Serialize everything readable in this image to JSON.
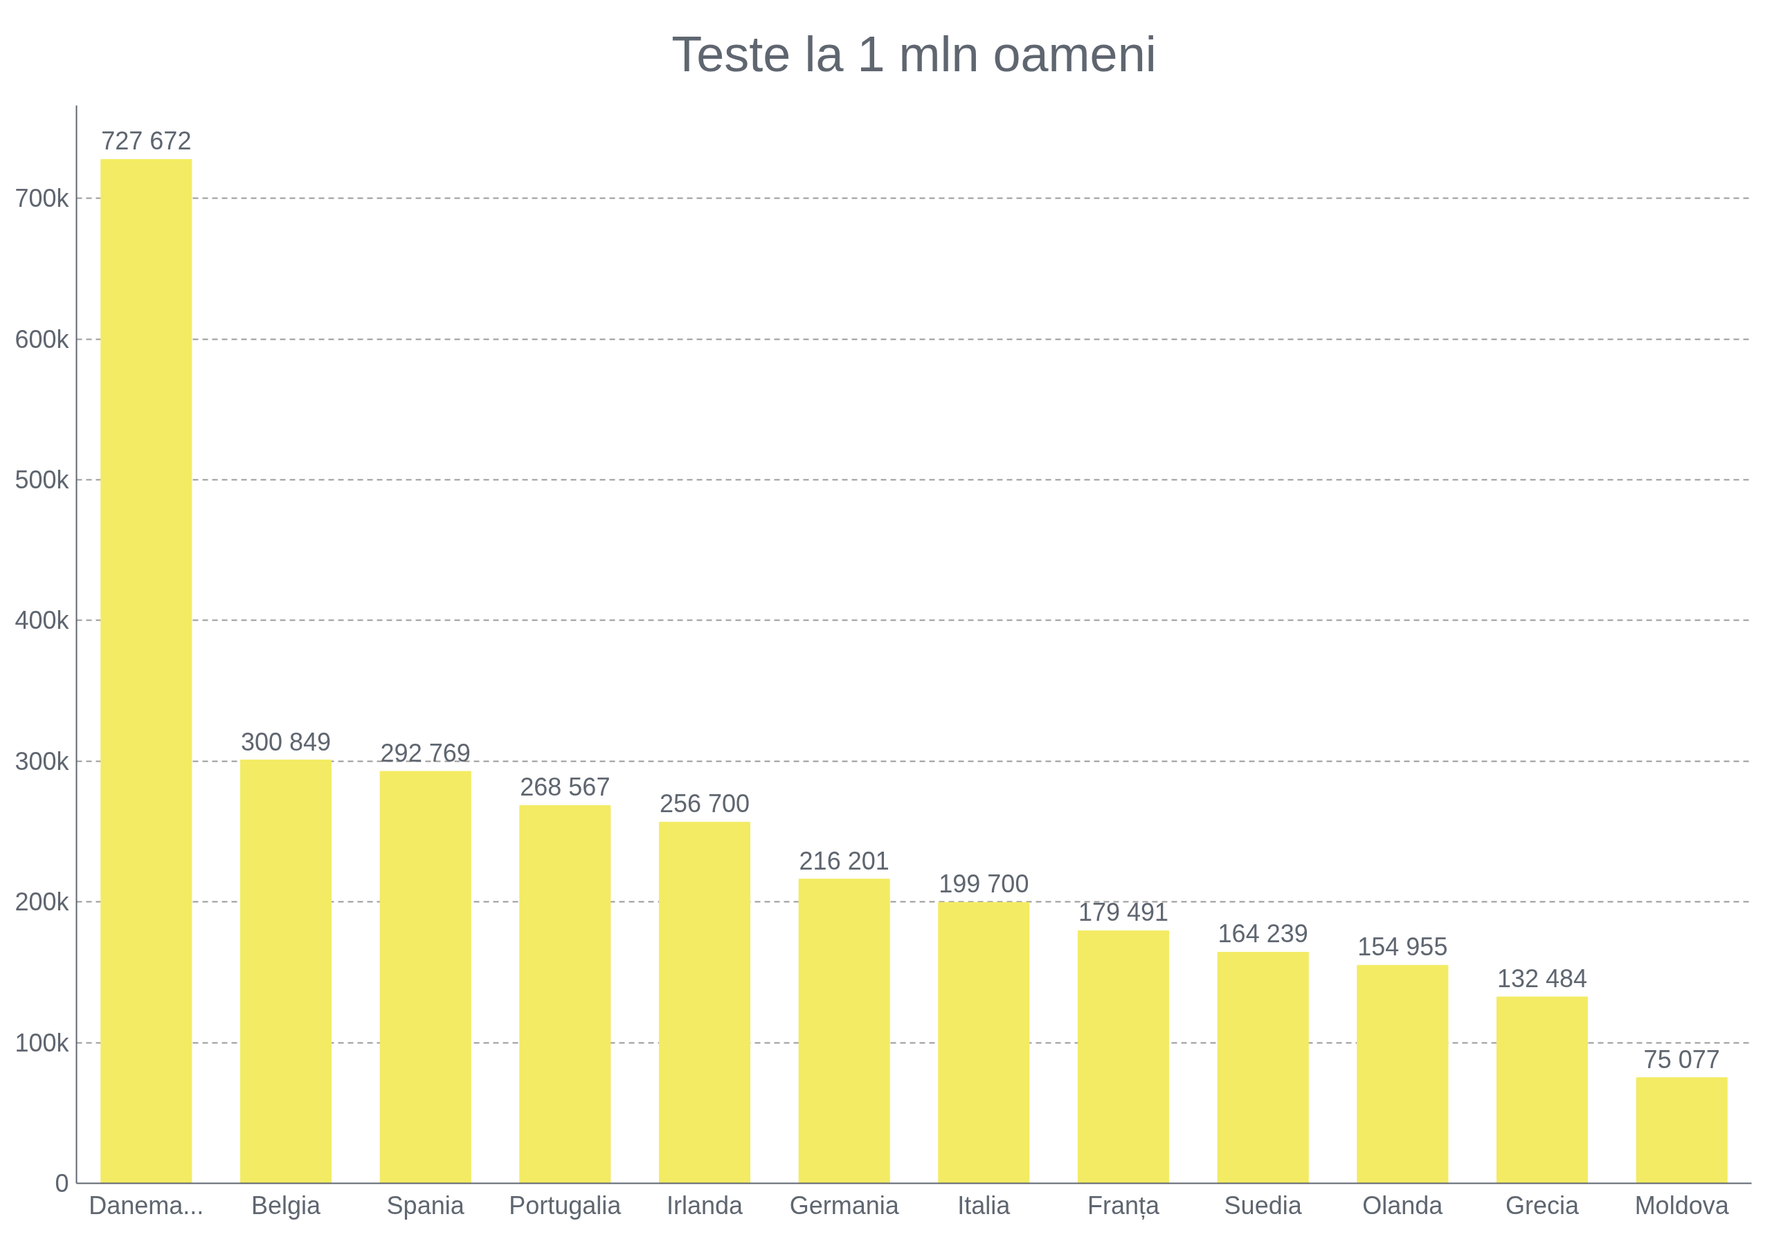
{
  "chart_data": {
    "type": "bar",
    "title": "Teste la 1 mln oameni",
    "categories": [
      "Danema...",
      "Belgia",
      "Spania",
      "Portugalia",
      "Irlanda",
      "Germania",
      "Italia",
      "Franța",
      "Suedia",
      "Olanda",
      "Grecia",
      "Moldova"
    ],
    "values": [
      727672,
      300849,
      292769,
      268567,
      256700,
      216201,
      199700,
      179491,
      164239,
      154955,
      132484,
      75077
    ],
    "value_labels": [
      "727 672",
      "300 849",
      "292 769",
      "268 567",
      "256 700",
      "216 201",
      "199 700",
      "179 491",
      "164 239",
      "154 955",
      "132 484",
      "75 077"
    ],
    "color": "#f3eb63",
    "ylim": [
      0,
      766000
    ],
    "yticks": [
      0,
      {
        "value": 100000,
        "label": "100k"
      },
      {
        "value": 200000,
        "label": "200k"
      },
      {
        "value": 300000,
        "label": "300k"
      },
      {
        "value": 400000,
        "label": "400k"
      },
      {
        "value": 500000,
        "label": "500k"
      },
      {
        "value": 600000,
        "label": "600k"
      },
      {
        "value": 700000,
        "label": "700k"
      }
    ],
    "grid": "y"
  }
}
